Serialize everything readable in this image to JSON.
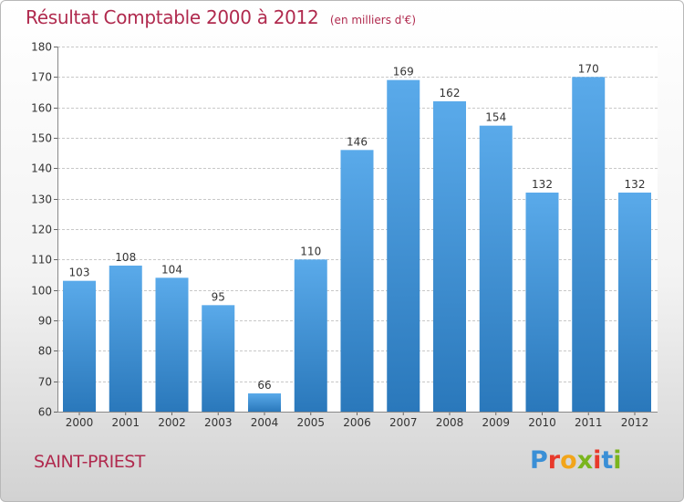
{
  "header": {
    "title": "Résultat Comptable 2000 à 2012",
    "unit": "(en milliers d'€)"
  },
  "footer": {
    "commune": "SAINT-PRIEST",
    "logo": {
      "text": "Proxiti",
      "letter_colors": [
        "#3a8fd6",
        "#e8392b",
        "#f2a51a",
        "#7ab51d",
        "#e8392b",
        "#3a8fd6",
        "#7ab51d"
      ]
    }
  },
  "colors": {
    "bar_top": "#5aaaea",
    "bar_bottom": "#2a78bb",
    "title": "#b02a4e",
    "grid": "#c8c8c8",
    "axis_text": "#333333"
  },
  "chart_data": {
    "type": "bar",
    "categories": [
      "2000",
      "2001",
      "2002",
      "2003",
      "2004",
      "2005",
      "2006",
      "2007",
      "2008",
      "2009",
      "2010",
      "2011",
      "2012"
    ],
    "values": [
      103,
      108,
      104,
      95,
      66,
      110,
      146,
      169,
      162,
      154,
      132,
      170,
      132
    ],
    "ylim": [
      60,
      180
    ],
    "yticks": [
      60,
      70,
      80,
      90,
      100,
      110,
      120,
      130,
      140,
      150,
      160,
      170,
      180
    ],
    "grid": true,
    "data_labels": true
  }
}
